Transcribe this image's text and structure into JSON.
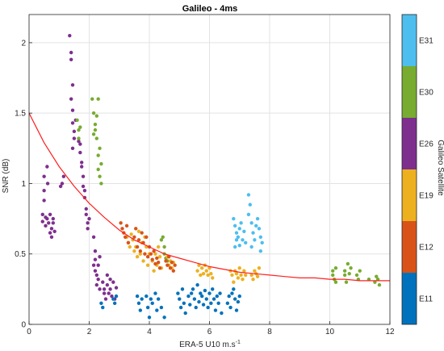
{
  "chart_data": {
    "type": "scatter",
    "title": "Galileo - 4ms",
    "xlabel_main": "ERA-5 U10 m.s",
    "xlabel_sup": "-1",
    "ylabel": "SNR (dB)",
    "xlim": [
      0,
      12
    ],
    "ylim": [
      0,
      2.2
    ],
    "xticks": [
      0,
      2,
      4,
      6,
      8,
      10,
      12
    ],
    "yticks": [
      0,
      0.5,
      1,
      1.5,
      2
    ],
    "grid": true,
    "colorbar": {
      "label": "Galileo Satellite",
      "entries": [
        {
          "name": "E11",
          "color": "#0072BD"
        },
        {
          "name": "E12",
          "color": "#D95319"
        },
        {
          "name": "E19",
          "color": "#EDB120"
        },
        {
          "name": "E26",
          "color": "#7E2F8E"
        },
        {
          "name": "E30",
          "color": "#77AC30"
        },
        {
          "name": "E31",
          "color": "#4DBEEE"
        }
      ]
    },
    "fit_curve": {
      "color": "#FF2020",
      "x": [
        0,
        0.5,
        1,
        1.5,
        2,
        2.5,
        3,
        3.5,
        4,
        4.5,
        5,
        5.5,
        6,
        6.5,
        7,
        7.5,
        8,
        8.5,
        9,
        9.5,
        10,
        10.5,
        11,
        11.5,
        12
      ],
      "y": [
        1.5,
        1.29,
        1.12,
        0.98,
        0.86,
        0.76,
        0.67,
        0.6,
        0.55,
        0.5,
        0.47,
        0.44,
        0.41,
        0.39,
        0.37,
        0.36,
        0.35,
        0.34,
        0.33,
        0.33,
        0.32,
        0.32,
        0.31,
        0.31,
        0.31
      ]
    },
    "series": [
      {
        "name": "E26",
        "color": "#7E2F8E",
        "points": [
          [
            0.45,
            0.78
          ],
          [
            0.45,
            0.73
          ],
          [
            0.5,
            0.95
          ],
          [
            0.5,
            1.05
          ],
          [
            0.5,
            0.88
          ],
          [
            0.55,
            0.76
          ],
          [
            0.55,
            0.7
          ],
          [
            0.6,
            0.75
          ],
          [
            0.6,
            1.12
          ],
          [
            0.62,
            1.0
          ],
          [
            0.65,
            0.72
          ],
          [
            0.7,
            0.65
          ],
          [
            0.7,
            0.78
          ],
          [
            0.75,
            0.68
          ],
          [
            0.75,
            0.62
          ],
          [
            0.8,
            0.72
          ],
          [
            0.8,
            0.75
          ],
          [
            0.85,
            0.66
          ],
          [
            1.1,
            1.0
          ],
          [
            1.05,
            0.98
          ],
          [
            1.15,
            1.05
          ],
          [
            1.35,
            2.05
          ],
          [
            1.4,
            1.93
          ],
          [
            1.4,
            1.88
          ],
          [
            1.45,
            1.7
          ],
          [
            1.4,
            1.6
          ],
          [
            1.45,
            1.52
          ],
          [
            1.45,
            1.43
          ],
          [
            1.5,
            1.37
          ],
          [
            1.5,
            1.32
          ],
          [
            1.45,
            1.25
          ],
          [
            1.55,
            1.45
          ],
          [
            1.7,
            1.28
          ],
          [
            1.7,
            1.22
          ],
          [
            1.75,
            1.12
          ],
          [
            1.8,
            1.05
          ],
          [
            1.8,
            0.98
          ],
          [
            1.85,
            0.95
          ],
          [
            1.85,
            0.9
          ],
          [
            1.9,
            0.82
          ],
          [
            1.9,
            0.78
          ],
          [
            1.95,
            0.72
          ],
          [
            1.95,
            0.68
          ],
          [
            2.0,
            0.75
          ],
          [
            1.75,
            1.15
          ],
          [
            1.65,
            1.3
          ],
          [
            2.15,
            0.62
          ],
          [
            2.2,
            0.52
          ],
          [
            2.2,
            0.46
          ],
          [
            2.15,
            0.42
          ],
          [
            2.2,
            0.38
          ],
          [
            2.25,
            0.35
          ],
          [
            2.3,
            0.32
          ],
          [
            2.3,
            0.42
          ],
          [
            2.35,
            0.48
          ],
          [
            2.25,
            0.28
          ],
          [
            2.35,
            0.25
          ],
          [
            2.45,
            0.3
          ],
          [
            2.5,
            0.25
          ],
          [
            2.5,
            0.22
          ],
          [
            2.55,
            0.18
          ],
          [
            2.6,
            0.28
          ],
          [
            2.65,
            0.22
          ],
          [
            2.7,
            0.25
          ],
          [
            2.75,
            0.2
          ],
          [
            2.8,
            0.3
          ],
          [
            2.85,
            0.18
          ],
          [
            2.9,
            0.26
          ],
          [
            2.6,
            0.35
          ],
          [
            2.7,
            0.32
          ]
        ]
      },
      {
        "name": "E30",
        "color": "#77AC30",
        "points": [
          [
            1.65,
            1.38
          ],
          [
            1.65,
            1.32
          ],
          [
            1.6,
            1.45
          ],
          [
            1.7,
            1.4
          ],
          [
            2.1,
            1.6
          ],
          [
            2.15,
            1.5
          ],
          [
            2.2,
            1.42
          ],
          [
            2.2,
            1.38
          ],
          [
            2.25,
            1.32
          ],
          [
            2.3,
            1.2
          ],
          [
            2.3,
            1.1
          ],
          [
            2.35,
            1.05
          ],
          [
            2.3,
            1.6
          ],
          [
            2.25,
            1.48
          ],
          [
            2.15,
            1.35
          ],
          [
            2.35,
            1.25
          ],
          [
            2.4,
            1.14
          ],
          [
            2.4,
            1.0
          ],
          [
            4.4,
            0.6
          ],
          [
            4.5,
            0.55
          ],
          [
            4.45,
            0.62
          ],
          [
            4.5,
            0.5
          ],
          [
            4.55,
            0.47
          ],
          [
            4.6,
            0.45
          ],
          [
            10.1,
            0.38
          ],
          [
            10.1,
            0.35
          ],
          [
            10.15,
            0.32
          ],
          [
            10.2,
            0.4
          ],
          [
            10.2,
            0.3
          ],
          [
            10.5,
            0.38
          ],
          [
            10.5,
            0.35
          ],
          [
            10.55,
            0.3
          ],
          [
            10.6,
            0.43
          ],
          [
            10.65,
            0.36
          ],
          [
            10.7,
            0.4
          ],
          [
            10.9,
            0.35
          ],
          [
            10.95,
            0.32
          ],
          [
            11.0,
            0.38
          ],
          [
            11.3,
            0.32
          ],
          [
            11.5,
            0.3
          ],
          [
            11.55,
            0.34
          ],
          [
            11.6,
            0.32
          ],
          [
            11.65,
            0.28
          ]
        ]
      },
      {
        "name": "E19",
        "color": "#EDB120",
        "points": [
          [
            3.25,
            0.62
          ],
          [
            3.3,
            0.58
          ],
          [
            3.35,
            0.55
          ],
          [
            3.4,
            0.64
          ],
          [
            3.45,
            0.6
          ],
          [
            3.5,
            0.52
          ],
          [
            3.55,
            0.55
          ],
          [
            3.6,
            0.48
          ],
          [
            3.65,
            0.66
          ],
          [
            3.7,
            0.5
          ],
          [
            3.75,
            0.58
          ],
          [
            3.8,
            0.45
          ],
          [
            3.85,
            0.62
          ],
          [
            3.9,
            0.55
          ],
          [
            3.95,
            0.42
          ],
          [
            4.0,
            0.5
          ],
          [
            4.1,
            0.45
          ],
          [
            4.15,
            0.38
          ],
          [
            4.2,
            0.5
          ],
          [
            4.25,
            0.42
          ],
          [
            4.3,
            0.55
          ],
          [
            4.35,
            0.48
          ],
          [
            4.4,
            0.4
          ],
          [
            4.6,
            0.48
          ],
          [
            4.65,
            0.42
          ],
          [
            4.7,
            0.45
          ],
          [
            4.75,
            0.4
          ],
          [
            4.8,
            0.44
          ],
          [
            5.6,
            0.38
          ],
          [
            5.65,
            0.42
          ],
          [
            5.7,
            0.35
          ],
          [
            5.75,
            0.4
          ],
          [
            5.8,
            0.36
          ],
          [
            5.85,
            0.42
          ],
          [
            5.9,
            0.38
          ],
          [
            5.95,
            0.35
          ],
          [
            6.0,
            0.4
          ],
          [
            6.05,
            0.36
          ],
          [
            6.1,
            0.33
          ],
          [
            6.7,
            0.38
          ],
          [
            6.75,
            0.35
          ],
          [
            6.8,
            0.3
          ],
          [
            6.85,
            0.38
          ],
          [
            6.9,
            0.36
          ],
          [
            6.95,
            0.33
          ],
          [
            7.0,
            0.4
          ],
          [
            7.05,
            0.35
          ],
          [
            7.1,
            0.32
          ],
          [
            7.15,
            0.38
          ],
          [
            7.2,
            0.35
          ],
          [
            7.4,
            0.35
          ],
          [
            7.45,
            0.32
          ],
          [
            7.5,
            0.38
          ],
          [
            7.55,
            0.36
          ],
          [
            7.6,
            0.34
          ],
          [
            7.65,
            0.4
          ]
        ]
      },
      {
        "name": "E12",
        "color": "#D95319",
        "points": [
          [
            3.05,
            0.72
          ],
          [
            3.1,
            0.68
          ],
          [
            3.15,
            0.65
          ],
          [
            3.2,
            0.62
          ],
          [
            3.25,
            0.7
          ],
          [
            3.3,
            0.58
          ],
          [
            3.5,
            0.62
          ],
          [
            3.55,
            0.68
          ],
          [
            3.6,
            0.55
          ],
          [
            3.65,
            0.6
          ],
          [
            3.7,
            0.52
          ],
          [
            3.75,
            0.65
          ],
          [
            3.8,
            0.58
          ],
          [
            3.85,
            0.5
          ],
          [
            3.9,
            0.62
          ],
          [
            3.95,
            0.48
          ],
          [
            4.0,
            0.55
          ],
          [
            4.05,
            0.5
          ],
          [
            4.1,
            0.46
          ],
          [
            4.15,
            0.52
          ],
          [
            4.2,
            0.43
          ],
          [
            4.25,
            0.47
          ],
          [
            4.3,
            0.44
          ],
          [
            4.35,
            0.4
          ],
          [
            4.55,
            0.45
          ],
          [
            4.6,
            0.42
          ],
          [
            4.65,
            0.48
          ],
          [
            4.7,
            0.4
          ],
          [
            4.75,
            0.44
          ],
          [
            4.8,
            0.38
          ],
          [
            4.85,
            0.42
          ]
        ]
      },
      {
        "name": "E11",
        "color": "#0072BD",
        "points": [
          [
            2.4,
            0.15
          ],
          [
            2.45,
            0.12
          ],
          [
            2.8,
            0.18
          ],
          [
            2.85,
            0.15
          ],
          [
            2.9,
            0.2
          ],
          [
            3.6,
            0.2
          ],
          [
            3.65,
            0.15
          ],
          [
            3.7,
            0.1
          ],
          [
            3.75,
            0.18
          ],
          [
            3.9,
            0.2
          ],
          [
            3.95,
            0.12
          ],
          [
            4.0,
            0.05
          ],
          [
            4.05,
            0.18
          ],
          [
            4.1,
            0.15
          ],
          [
            4.2,
            0.22
          ],
          [
            4.25,
            0.1
          ],
          [
            4.3,
            0.18
          ],
          [
            4.4,
            0.12
          ],
          [
            4.5,
            0.05
          ],
          [
            4.95,
            0.22
          ],
          [
            5.0,
            0.18
          ],
          [
            5.05,
            0.12
          ],
          [
            5.1,
            0.25
          ],
          [
            5.15,
            0.15
          ],
          [
            5.2,
            0.08
          ],
          [
            5.3,
            0.2
          ],
          [
            5.35,
            0.14
          ],
          [
            5.4,
            0.22
          ],
          [
            5.45,
            0.25
          ],
          [
            5.5,
            0.18
          ],
          [
            5.55,
            0.12
          ],
          [
            5.6,
            0.28
          ],
          [
            5.65,
            0.16
          ],
          [
            5.7,
            0.22
          ],
          [
            5.75,
            0.2
          ],
          [
            5.8,
            0.14
          ],
          [
            5.85,
            0.24
          ],
          [
            5.9,
            0.18
          ],
          [
            5.95,
            0.12
          ],
          [
            6.0,
            0.22
          ],
          [
            6.05,
            0.15
          ],
          [
            6.1,
            0.25
          ],
          [
            6.15,
            0.18
          ],
          [
            6.2,
            0.1
          ],
          [
            6.25,
            0.2
          ],
          [
            6.3,
            0.15
          ],
          [
            6.35,
            0.22
          ],
          [
            6.4,
            0.08
          ],
          [
            6.6,
            0.15
          ],
          [
            6.65,
            0.2
          ],
          [
            6.7,
            0.12
          ],
          [
            6.75,
            0.22
          ],
          [
            6.8,
            0.25
          ],
          [
            6.85,
            0.18
          ],
          [
            6.9,
            0.1
          ],
          [
            6.95,
            0.16
          ],
          [
            7.0,
            0.2
          ]
        ]
      },
      {
        "name": "E31",
        "color": "#4DBEEE",
        "points": [
          [
            6.8,
            0.75
          ],
          [
            6.85,
            0.7
          ],
          [
            6.9,
            0.65
          ],
          [
            6.95,
            0.62
          ],
          [
            7.0,
            0.68
          ],
          [
            7.05,
            0.72
          ],
          [
            7.1,
            0.6
          ],
          [
            7.15,
            0.66
          ],
          [
            7.2,
            0.58
          ],
          [
            6.85,
            0.55
          ],
          [
            6.9,
            0.6
          ],
          [
            7.0,
            0.56
          ],
          [
            7.3,
            0.92
          ],
          [
            7.35,
            0.85
          ],
          [
            7.3,
            0.78
          ],
          [
            7.4,
            0.72
          ],
          [
            7.45,
            0.65
          ],
          [
            7.5,
            0.6
          ],
          [
            7.55,
            0.7
          ],
          [
            7.6,
            0.75
          ],
          [
            7.65,
            0.68
          ],
          [
            7.7,
            0.62
          ],
          [
            7.75,
            0.58
          ],
          [
            7.7,
            0.52
          ],
          [
            7.4,
            0.55
          ]
        ]
      }
    ]
  }
}
